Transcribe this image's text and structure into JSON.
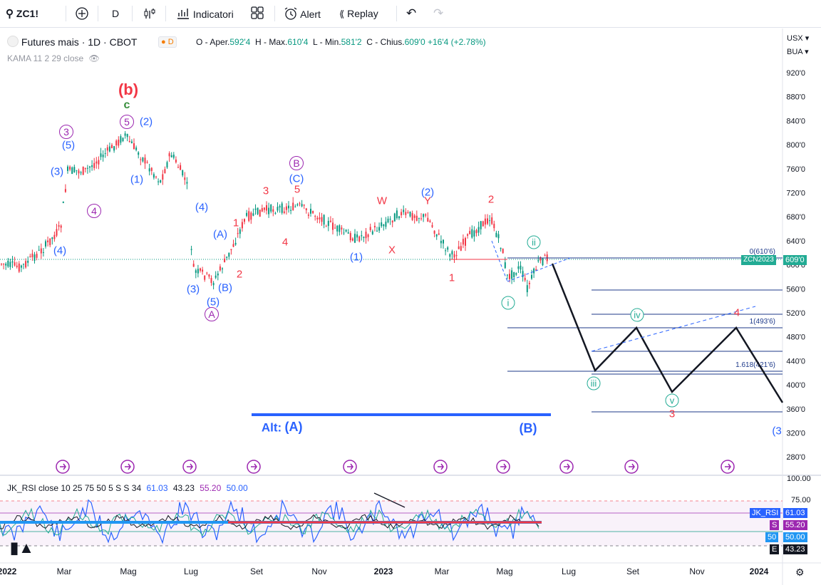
{
  "toolbar": {
    "symbol": "ZC1!",
    "interval": "D",
    "indicators_label": "Indicatori",
    "alert_label": "Alert",
    "replay_label": "Replay"
  },
  "legend": {
    "title": "Futures mais · 1D · CBOT",
    "badge": "D",
    "o_label": "O - Aper.",
    "o_val": "592'4",
    "h_label": "H - Max.",
    "h_val": "610'4",
    "l_label": "L - Min.",
    "l_val": "581'2",
    "c_label": "C - Chius.",
    "c_val": "609'0",
    "change": "+16'4 (+2.78%)",
    "kama": "KAMA 11 2 29 close"
  },
  "price_axis": {
    "currency": "USX",
    "unit": "BUA",
    "ticks": [
      "920'0",
      "880'0",
      "840'0",
      "800'0",
      "760'0",
      "720'0",
      "680'0",
      "640'0",
      "600'0",
      "560'0",
      "520'0",
      "480'0",
      "440'0",
      "400'0",
      "360'0",
      "320'0",
      "280'0"
    ],
    "badge_symbol": "ZCN2023",
    "badge_price": "609'0"
  },
  "time_axis": [
    "2022",
    "Mar",
    "Mag",
    "Lug",
    "Set",
    "Nov",
    "2023",
    "Mar",
    "Mag",
    "Lug",
    "Set",
    "Nov",
    "2024"
  ],
  "rsi": {
    "title": "JK_RSI close 10 25 75 50 5 S S 34",
    "v1": "61.03",
    "v2": "43.23",
    "v3": "55.20",
    "v4": "50.00",
    "axis_ticks": [
      "100.00",
      "75.00"
    ],
    "badge_name": "JK_RSI",
    "badge_val": "61.03",
    "badge_s_label": "S",
    "badge_s_val": "55.20",
    "badge_50_label": "50",
    "badge_50_val": "50.00",
    "badge_e_label": "E",
    "badge_e_val": "43.23"
  },
  "fib": {
    "zero": "0(610'6)",
    "one": "1(493'6)",
    "ext": "1.618(421'6)"
  },
  "wave_labels": {
    "b_big": "(b)",
    "c_green": "c",
    "five_circ": "5",
    "two_paren": "(2)",
    "three_circ": "3",
    "five_paren": "(5)",
    "three_paren": "(3)",
    "one_paren": "(1)",
    "four_circ": "4",
    "four_paren_a": "(4)",
    "four_paren_b": "(4)",
    "a_paren": "(A)",
    "b_paren": "(B)",
    "three_paren_b": "(3)",
    "five_paren_b": "(5)",
    "a_circ": "A",
    "one_red": "1",
    "two_red": "2",
    "three_red": "3",
    "four_red": "4",
    "five_red": "5",
    "b_circ": "B",
    "c_paren": "(C)",
    "w_red": "W",
    "y_red": "Y",
    "x_red": "X",
    "one_paren_b": "(1)",
    "two_paren_b": "(2)",
    "two_red_b": "2",
    "one_red_b": "1",
    "ii_circ": "ii",
    "i_circ": "i",
    "iv_circ": "iv",
    "iii_circ": "iii",
    "v_circ": "v",
    "four_red_b": "4",
    "three_red_b": "3",
    "three_paren_c": "(3",
    "alt": "Alt:",
    "alt_a": "(A)",
    "b_paren_big": "(B)"
  },
  "colors": {
    "up": "#089981",
    "down": "#f23645",
    "wave_blue": "#2962ff",
    "wave_red": "#f23645",
    "wave_purple": "#9c27b0",
    "wave_green": "#388e3c",
    "teal": "#22ab94"
  }
}
